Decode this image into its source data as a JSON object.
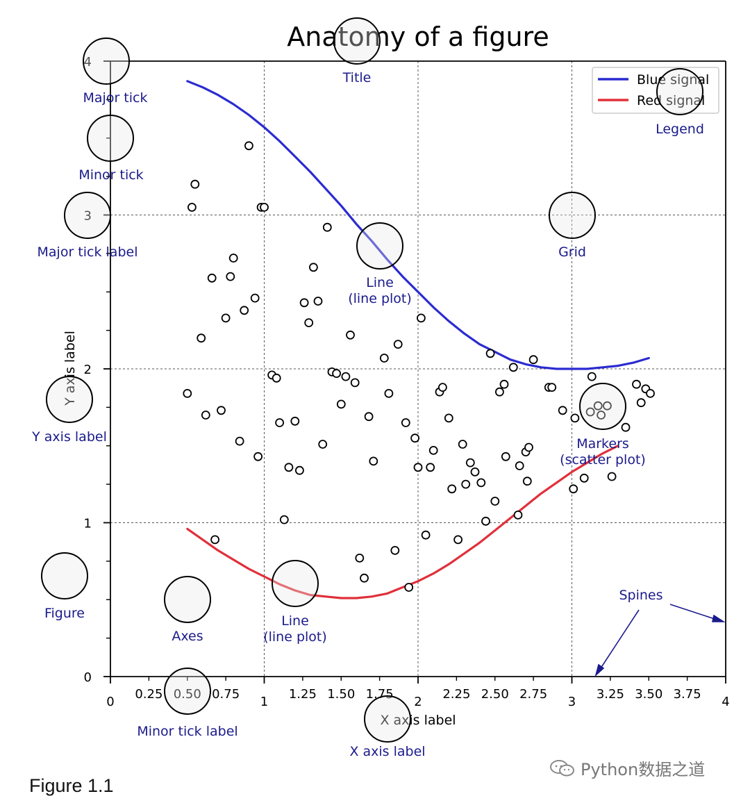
{
  "chart_data": {
    "type": "line",
    "title": "Anatomy of a figure",
    "xlabel": "X axis label",
    "ylabel": "Y axis label",
    "xlim": [
      0,
      4
    ],
    "ylim": [
      0,
      4
    ],
    "x_major_ticks": [
      "0",
      "1",
      "2",
      "3",
      "4"
    ],
    "x_minor_ticks": [
      "0.25",
      "0.50",
      "0.75",
      "1.25",
      "1.50",
      "1.75",
      "2.25",
      "2.50",
      "2.75",
      "3.25",
      "3.50",
      "3.75"
    ],
    "y_major_ticks": [
      "0",
      "1",
      "2",
      "3",
      "4"
    ],
    "grid": true,
    "legend_placement": "top-right",
    "series": [
      {
        "name": "Blue signal",
        "color": "#2b2bd1",
        "x": [
          0.5,
          0.6,
          0.7,
          0.8,
          0.9,
          1.0,
          1.1,
          1.2,
          1.3,
          1.4,
          1.5,
          1.6,
          1.7,
          1.8,
          1.9,
          2.0,
          2.1,
          2.2,
          2.3,
          2.4,
          2.5,
          2.6,
          2.7,
          2.8,
          2.9,
          3.0,
          3.1,
          3.2,
          3.3,
          3.4,
          3.5
        ],
        "values": [
          3.87,
          3.83,
          3.78,
          3.72,
          3.65,
          3.57,
          3.48,
          3.38,
          3.28,
          3.17,
          3.06,
          2.94,
          2.83,
          2.71,
          2.6,
          2.5,
          2.4,
          2.31,
          2.23,
          2.16,
          2.11,
          2.06,
          2.03,
          2.01,
          2.0,
          2.0,
          2.0,
          2.01,
          2.02,
          2.04,
          2.07
        ]
      },
      {
        "name": "Red signal",
        "color": "#e0303a",
        "x": [
          0.5,
          0.6,
          0.7,
          0.8,
          0.9,
          1.0,
          1.1,
          1.2,
          1.3,
          1.4,
          1.5,
          1.6,
          1.7,
          1.8,
          1.9,
          2.0,
          2.1,
          2.2,
          2.3,
          2.4,
          2.5,
          2.6,
          2.7,
          2.8,
          2.9,
          3.0,
          3.1,
          3.2,
          3.3
        ],
        "values": [
          0.96,
          0.89,
          0.82,
          0.76,
          0.7,
          0.65,
          0.6,
          0.56,
          0.53,
          0.52,
          0.51,
          0.51,
          0.52,
          0.54,
          0.58,
          0.62,
          0.67,
          0.73,
          0.8,
          0.87,
          0.95,
          1.03,
          1.11,
          1.19,
          1.26,
          1.33,
          1.39,
          1.45,
          1.5
        ]
      }
    ],
    "scatter": {
      "name": "Markers",
      "points": [
        [
          0.9,
          3.45
        ],
        [
          0.55,
          3.2
        ],
        [
          0.53,
          3.05
        ],
        [
          0.98,
          3.05
        ],
        [
          1.0,
          3.05
        ],
        [
          1.41,
          2.92
        ],
        [
          0.8,
          2.72
        ],
        [
          0.66,
          2.59
        ],
        [
          0.78,
          2.6
        ],
        [
          1.32,
          2.66
        ],
        [
          0.94,
          2.46
        ],
        [
          1.26,
          2.43
        ],
        [
          1.35,
          2.44
        ],
        [
          0.87,
          2.38
        ],
        [
          0.75,
          2.33
        ],
        [
          1.29,
          2.3
        ],
        [
          0.59,
          2.2
        ],
        [
          2.02,
          2.33
        ],
        [
          1.56,
          2.22
        ],
        [
          1.87,
          2.16
        ],
        [
          1.78,
          2.07
        ],
        [
          2.47,
          2.1
        ],
        [
          2.62,
          2.01
        ],
        [
          2.75,
          2.06
        ],
        [
          1.05,
          1.96
        ],
        [
          1.08,
          1.94
        ],
        [
          1.44,
          1.98
        ],
        [
          1.47,
          1.97
        ],
        [
          1.53,
          1.95
        ],
        [
          1.59,
          1.91
        ],
        [
          2.56,
          1.9
        ],
        [
          2.53,
          1.85
        ],
        [
          3.13,
          1.95
        ],
        [
          3.42,
          1.9
        ],
        [
          3.48,
          1.87
        ],
        [
          3.51,
          1.84
        ],
        [
          2.85,
          1.88
        ],
        [
          2.87,
          1.88
        ],
        [
          0.5,
          1.84
        ],
        [
          0.62,
          1.7
        ],
        [
          0.72,
          1.73
        ],
        [
          1.5,
          1.77
        ],
        [
          1.81,
          1.84
        ],
        [
          2.14,
          1.85
        ],
        [
          2.16,
          1.88
        ],
        [
          3.45,
          1.78
        ],
        [
          3.17,
          1.76
        ],
        [
          3.23,
          1.76
        ],
        [
          3.12,
          1.72
        ],
        [
          3.19,
          1.7
        ],
        [
          2.94,
          1.73
        ],
        [
          3.02,
          1.68
        ],
        [
          1.1,
          1.65
        ],
        [
          1.2,
          1.66
        ],
        [
          1.68,
          1.69
        ],
        [
          1.92,
          1.65
        ],
        [
          2.2,
          1.68
        ],
        [
          3.35,
          1.62
        ],
        [
          0.84,
          1.53
        ],
        [
          1.38,
          1.51
        ],
        [
          1.98,
          1.55
        ],
        [
          2.1,
          1.47
        ],
        [
          2.29,
          1.51
        ],
        [
          2.57,
          1.43
        ],
        [
          2.7,
          1.46
        ],
        [
          2.72,
          1.49
        ],
        [
          0.96,
          1.43
        ],
        [
          1.71,
          1.4
        ],
        [
          2.34,
          1.39
        ],
        [
          2.66,
          1.37
        ],
        [
          1.16,
          1.36
        ],
        [
          1.23,
          1.34
        ],
        [
          2.0,
          1.36
        ],
        [
          2.08,
          1.36
        ],
        [
          2.37,
          1.33
        ],
        [
          3.08,
          1.29
        ],
        [
          2.31,
          1.25
        ],
        [
          2.41,
          1.26
        ],
        [
          2.71,
          1.27
        ],
        [
          3.01,
          1.22
        ],
        [
          2.22,
          1.22
        ],
        [
          3.26,
          1.3
        ],
        [
          2.5,
          1.14
        ],
        [
          2.65,
          1.05
        ],
        [
          1.13,
          1.02
        ],
        [
          2.44,
          1.01
        ],
        [
          2.05,
          0.92
        ],
        [
          0.68,
          0.89
        ],
        [
          2.26,
          0.89
        ],
        [
          1.85,
          0.82
        ],
        [
          1.62,
          0.77
        ],
        [
          1.65,
          0.64
        ],
        [
          1.94,
          0.58
        ]
      ]
    }
  },
  "annotations": {
    "title": "Title",
    "major_tick": "Major tick",
    "minor_tick": "Minor tick",
    "major_tick_label": "Major tick label",
    "grid": "Grid",
    "legend": "Legend",
    "line_plot_1": "Line",
    "line_plot_1_sub": "(line plot)",
    "line_plot_2": "Line",
    "line_plot_2_sub": "(line plot)",
    "y_axis_label": "Y axis label",
    "markers": "Markers",
    "markers_sub": "(scatter plot)",
    "figure": "Figure",
    "axes": "Axes",
    "spines": "Spines",
    "minor_tick_label": "Minor tick label",
    "x_axis_label": "X axis label"
  },
  "caption": "Figure 1.1",
  "watermark": "Python数据之道",
  "colors": {
    "annotation": "#1a1a8c",
    "blue_signal": "#2b2bd1",
    "red_signal": "#e0303a",
    "grid": "#555555"
  }
}
